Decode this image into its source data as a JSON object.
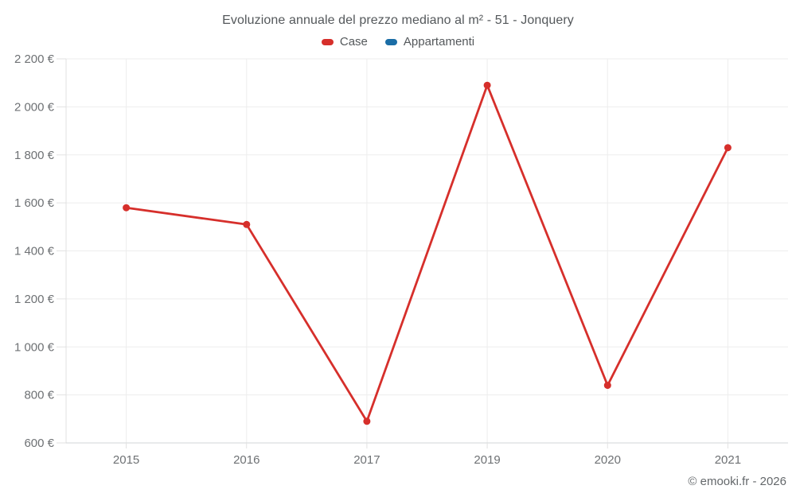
{
  "header": {
    "title": "Evoluzione annuale del prezzo mediano al m² - 51 - Jonquery"
  },
  "legend": {
    "items": [
      {
        "label": "Case",
        "color": "#d62f2b"
      },
      {
        "label": "Appartamenti",
        "color": "#1a6da6"
      }
    ]
  },
  "footer": {
    "credit": "© emooki.fr - 2026"
  },
  "chart_data": {
    "type": "line",
    "title": "Evoluzione annuale del prezzo mediano al m² - 51 - Jonquery",
    "categories": [
      "2015",
      "2016",
      "2017",
      "2019",
      "2020",
      "2021"
    ],
    "series": [
      {
        "name": "Case",
        "color": "#d62f2b",
        "values": [
          1580,
          1510,
          690,
          2090,
          840,
          1830
        ]
      },
      {
        "name": "Appartamenti",
        "color": "#1a6da6",
        "values": []
      }
    ],
    "xlabel": "",
    "ylabel": "",
    "ylim": [
      600,
      2200
    ],
    "ytick_step": 200,
    "ytick_labels": [
      "600 €",
      "800 €",
      "1 000 €",
      "1 200 €",
      "1 400 €",
      "1 600 €",
      "1 800 €",
      "2 000 €",
      "2 200 €"
    ],
    "currency_suffix": " €",
    "grid": true,
    "legend_position": "top",
    "note": "Appartamenti series appears in legend only; no data points are drawn for it."
  }
}
